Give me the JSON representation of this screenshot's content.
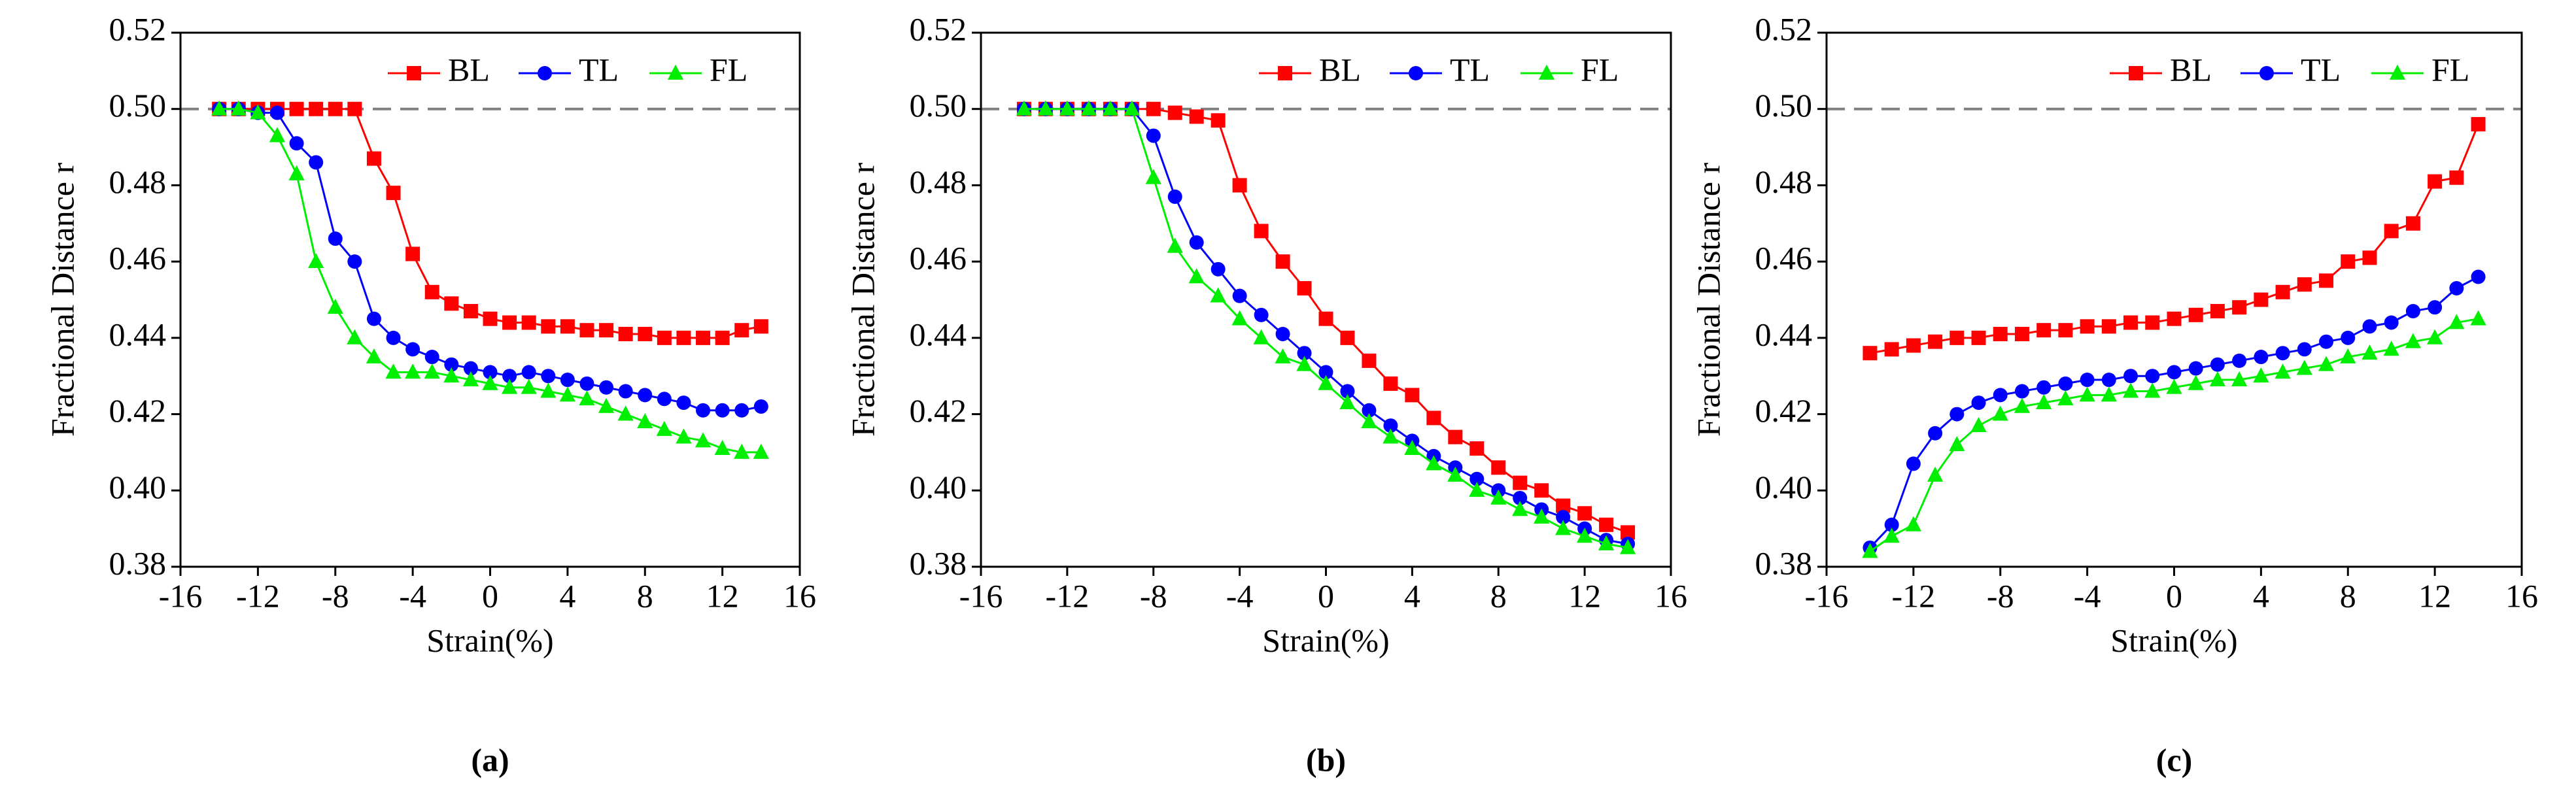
{
  "chart_data": [
    {
      "type": "line",
      "caption": "(a)",
      "xlabel": "Strain(%)",
      "ylabel": "Fractional Distance r",
      "x": [
        -14,
        -13,
        -12,
        -11,
        -10,
        -9,
        -8,
        -7,
        -6,
        -5,
        -4,
        -3,
        -2,
        -1,
        0,
        1,
        2,
        3,
        4,
        5,
        6,
        7,
        8,
        9,
        10,
        11,
        12,
        13,
        14
      ],
      "series": [
        {
          "name": "BL",
          "color": "#ff0000",
          "marker": "square",
          "values": [
            0.5,
            0.5,
            0.5,
            0.5,
            0.5,
            0.5,
            0.5,
            0.5,
            0.487,
            0.478,
            0.462,
            0.452,
            0.449,
            0.447,
            0.445,
            0.444,
            0.444,
            0.443,
            0.443,
            0.442,
            0.442,
            0.441,
            0.441,
            0.44,
            0.44,
            0.44,
            0.44,
            0.442,
            0.443
          ]
        },
        {
          "name": "TL",
          "color": "#0000ff",
          "marker": "circle",
          "values": [
            0.5,
            0.5,
            0.499,
            0.499,
            0.491,
            0.486,
            0.466,
            0.46,
            0.445,
            0.44,
            0.437,
            0.435,
            0.433,
            0.432,
            0.431,
            0.43,
            0.431,
            0.43,
            0.429,
            0.428,
            0.427,
            0.426,
            0.425,
            0.424,
            0.423,
            0.421,
            0.421,
            0.421,
            0.422
          ]
        },
        {
          "name": "FL",
          "color": "#00ee00",
          "marker": "triangle",
          "values": [
            0.5,
            0.5,
            0.499,
            0.493,
            0.483,
            0.46,
            0.448,
            0.44,
            0.435,
            0.431,
            0.431,
            0.431,
            0.43,
            0.429,
            0.428,
            0.427,
            0.427,
            0.426,
            0.425,
            0.424,
            0.422,
            0.42,
            0.418,
            0.416,
            0.414,
            0.413,
            0.411,
            0.41,
            0.41
          ]
        }
      ],
      "ref_line": 0.5,
      "legend": "upper right",
      "xlim": [
        -16,
        16
      ],
      "xticks": [
        -16,
        -12,
        -8,
        -4,
        0,
        4,
        8,
        12,
        16
      ],
      "ylim": [
        0.38,
        0.52
      ],
      "yticks": [
        0.38,
        {
          "value": 0.4,
          "label": "0.40"
        },
        0.42,
        0.44,
        0.46,
        0.48,
        {
          "value": 0.5,
          "label": "0.50"
        },
        0.52
      ]
    },
    {
      "type": "line",
      "caption": "(b)",
      "xlabel": "Strain(%)",
      "ylabel": "Fractional Distance r",
      "x": [
        -14,
        -13,
        -12,
        -11,
        -10,
        -9,
        -8,
        -7,
        -6,
        -5,
        -4,
        -3,
        -2,
        -1,
        0,
        1,
        2,
        3,
        4,
        5,
        6,
        7,
        8,
        9,
        10,
        11,
        12,
        13,
        14
      ],
      "series": [
        {
          "name": "BL",
          "color": "#ff0000",
          "marker": "square",
          "values": [
            0.5,
            0.5,
            0.5,
            0.5,
            0.5,
            0.5,
            0.5,
            0.499,
            0.498,
            0.497,
            0.48,
            0.468,
            0.46,
            0.453,
            0.445,
            0.44,
            0.434,
            0.428,
            0.425,
            0.419,
            0.414,
            0.411,
            0.406,
            0.402,
            0.4,
            0.396,
            0.394,
            0.391,
            0.389
          ]
        },
        {
          "name": "TL",
          "color": "#0000ff",
          "marker": "circle",
          "values": [
            0.5,
            0.5,
            0.5,
            0.5,
            0.5,
            0.5,
            0.493,
            0.477,
            0.465,
            0.458,
            0.451,
            0.446,
            0.441,
            0.436,
            0.431,
            0.426,
            0.421,
            0.417,
            0.413,
            0.409,
            0.406,
            0.403,
            0.4,
            0.398,
            0.395,
            0.393,
            0.39,
            0.387,
            0.386
          ]
        },
        {
          "name": "FL",
          "color": "#00ee00",
          "marker": "triangle",
          "values": [
            0.5,
            0.5,
            0.5,
            0.5,
            0.5,
            0.5,
            0.482,
            0.464,
            0.456,
            0.451,
            0.445,
            0.44,
            0.435,
            0.433,
            0.428,
            0.423,
            0.418,
            0.414,
            0.411,
            0.407,
            0.404,
            0.4,
            0.398,
            0.395,
            0.393,
            0.39,
            0.388,
            0.386,
            0.385
          ]
        }
      ],
      "ref_line": 0.5,
      "legend": "upper right",
      "xlim": [
        -16,
        16
      ],
      "xticks": [
        -16,
        -12,
        -8,
        -4,
        0,
        4,
        8,
        12,
        16
      ],
      "ylim": [
        0.38,
        0.52
      ],
      "yticks": [
        0.38,
        {
          "value": 0.4,
          "label": "0.40"
        },
        0.42,
        0.44,
        0.46,
        0.48,
        {
          "value": 0.5,
          "label": "0.50"
        },
        0.52
      ]
    },
    {
      "type": "line",
      "caption": "(c)",
      "xlabel": "Strain(%)",
      "ylabel": "Fractional Distance r",
      "x": [
        -14,
        -13,
        -12,
        -11,
        -10,
        -9,
        -8,
        -7,
        -6,
        -5,
        -4,
        -3,
        -2,
        -1,
        0,
        1,
        2,
        3,
        4,
        5,
        6,
        7,
        8,
        9,
        10,
        11,
        12,
        13,
        14
      ],
      "series": [
        {
          "name": "BL",
          "color": "#ff0000",
          "marker": "square",
          "values": [
            0.436,
            0.437,
            0.438,
            0.439,
            0.44,
            0.44,
            0.441,
            0.441,
            0.442,
            0.442,
            0.443,
            0.443,
            0.444,
            0.444,
            0.445,
            0.446,
            0.447,
            0.448,
            0.45,
            0.452,
            0.454,
            0.455,
            0.46,
            0.461,
            0.468,
            0.47,
            0.481,
            0.482,
            0.496
          ]
        },
        {
          "name": "TL",
          "color": "#0000ff",
          "marker": "circle",
          "values": [
            0.385,
            0.391,
            0.407,
            0.415,
            0.42,
            0.423,
            0.425,
            0.426,
            0.427,
            0.428,
            0.429,
            0.429,
            0.43,
            0.43,
            0.431,
            0.432,
            0.433,
            0.434,
            0.435,
            0.436,
            0.437,
            0.439,
            0.44,
            0.443,
            0.444,
            0.447,
            0.448,
            0.453,
            0.456
          ]
        },
        {
          "name": "FL",
          "color": "#00ee00",
          "marker": "triangle",
          "values": [
            0.384,
            0.388,
            0.391,
            0.404,
            0.412,
            0.417,
            0.42,
            0.422,
            0.423,
            0.424,
            0.425,
            0.425,
            0.426,
            0.426,
            0.427,
            0.428,
            0.429,
            0.429,
            0.43,
            0.431,
            0.432,
            0.433,
            0.435,
            0.436,
            0.437,
            0.439,
            0.44,
            0.444,
            0.445
          ]
        }
      ],
      "ref_line": 0.5,
      "legend": "upper right",
      "xlim": [
        -16,
        16
      ],
      "xticks": [
        -16,
        -12,
        -8,
        -4,
        0,
        4,
        8,
        12,
        16
      ],
      "ylim": [
        0.38,
        0.52
      ],
      "yticks": [
        0.38,
        {
          "value": 0.4,
          "label": "0.40"
        },
        0.42,
        0.44,
        0.46,
        0.48,
        {
          "value": 0.5,
          "label": "0.50"
        },
        0.52
      ]
    }
  ]
}
